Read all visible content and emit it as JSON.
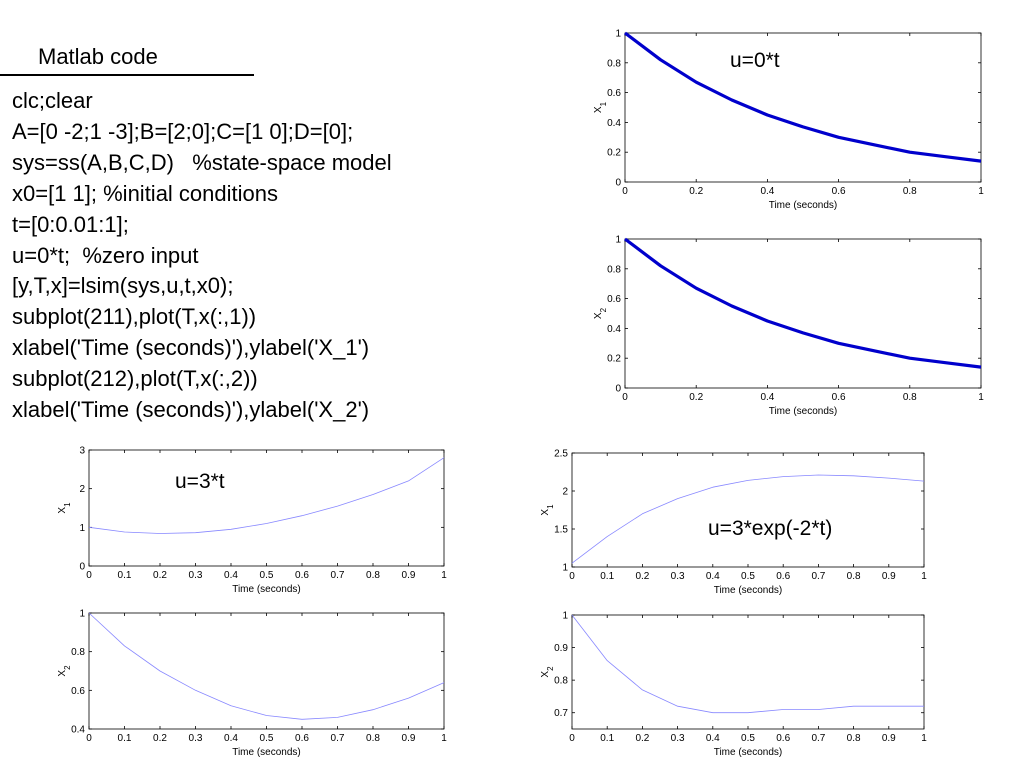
{
  "heading": "Matlab code",
  "code_lines": [
    "clc;clear",
    "A=[0 -2;1 -3];B=[2;0];C=[1 0];D=[0];",
    "sys=ss(A,B,C,D)   %state-space model",
    "x0=[1 1]; %initial conditions",
    "t=[0:0.01:1];",
    "u=0*t;  %zero input",
    "[y,T,x]=lsim(sys,u,t,x0);",
    "subplot(211),plot(T,x(:,1))",
    "xlabel('Time (seconds)'),ylabel('X_1')",
    "subplot(212),plot(T,x(:,2))",
    "xlabel('Time (seconds)'),ylabel('X_2')"
  ],
  "chart_data": [
    {
      "type": "line",
      "annotation": "u=0*t",
      "xlabel": "Time (seconds)",
      "ylabel": "X_1",
      "xlim": [
        0,
        1
      ],
      "ylim": [
        0,
        1
      ],
      "xticks": [
        0,
        0.2,
        0.4,
        0.6,
        0.8,
        1
      ],
      "yticks": [
        0,
        0.2,
        0.4,
        0.6,
        0.8,
        1
      ],
      "x": [
        0,
        0.1,
        0.2,
        0.3,
        0.4,
        0.5,
        0.6,
        0.7,
        0.8,
        0.9,
        1.0
      ],
      "series": [
        {
          "color": "#0000cc",
          "values": [
            1.0,
            0.82,
            0.67,
            0.55,
            0.45,
            0.37,
            0.3,
            0.25,
            0.2,
            0.17,
            0.14
          ]
        }
      ],
      "grid": false
    },
    {
      "type": "line",
      "xlabel": "Time (seconds)",
      "ylabel": "X_2",
      "xlim": [
        0,
        1
      ],
      "ylim": [
        0,
        1
      ],
      "xticks": [
        0,
        0.2,
        0.4,
        0.6,
        0.8,
        1
      ],
      "yticks": [
        0,
        0.2,
        0.4,
        0.6,
        0.8,
        1
      ],
      "x": [
        0,
        0.1,
        0.2,
        0.3,
        0.4,
        0.5,
        0.6,
        0.7,
        0.8,
        0.9,
        1.0
      ],
      "series": [
        {
          "color": "#0000cc",
          "values": [
            1.0,
            0.82,
            0.67,
            0.55,
            0.45,
            0.37,
            0.3,
            0.25,
            0.2,
            0.17,
            0.14
          ]
        }
      ],
      "grid": false
    },
    {
      "type": "line",
      "annotation": "u=3*t",
      "xlabel": "Time (seconds)",
      "ylabel": "X_1",
      "xlim": [
        0,
        1
      ],
      "ylim": [
        0,
        3
      ],
      "xticks": [
        0,
        0.1,
        0.2,
        0.3,
        0.4,
        0.5,
        0.6,
        0.7,
        0.8,
        0.9,
        1
      ],
      "yticks": [
        0,
        1,
        2,
        3
      ],
      "x": [
        0,
        0.1,
        0.2,
        0.3,
        0.4,
        0.5,
        0.6,
        0.7,
        0.8,
        0.9,
        1.0
      ],
      "series": [
        {
          "color": "#8888ff",
          "values": [
            1.0,
            0.88,
            0.84,
            0.86,
            0.95,
            1.1,
            1.3,
            1.55,
            1.85,
            2.2,
            2.8
          ]
        }
      ],
      "grid": false
    },
    {
      "type": "line",
      "xlabel": "Time (seconds)",
      "ylabel": "X_2",
      "xlim": [
        0,
        1
      ],
      "ylim": [
        0.4,
        1
      ],
      "xticks": [
        0,
        0.1,
        0.2,
        0.3,
        0.4,
        0.5,
        0.6,
        0.7,
        0.8,
        0.9,
        1
      ],
      "yticks": [
        0.4,
        0.6,
        0.8,
        1
      ],
      "x": [
        0,
        0.1,
        0.2,
        0.3,
        0.4,
        0.5,
        0.6,
        0.7,
        0.8,
        0.9,
        1.0
      ],
      "series": [
        {
          "color": "#8888ff",
          "values": [
            1.0,
            0.83,
            0.7,
            0.6,
            0.52,
            0.47,
            0.45,
            0.46,
            0.5,
            0.56,
            0.64
          ]
        }
      ],
      "grid": false
    },
    {
      "type": "line",
      "annotation": "u=3*exp(-2*t)",
      "xlabel": "Time (seconds)",
      "ylabel": "X_1",
      "xlim": [
        0,
        1
      ],
      "ylim": [
        1,
        2.5
      ],
      "xticks": [
        0,
        0.1,
        0.2,
        0.3,
        0.4,
        0.5,
        0.6,
        0.7,
        0.8,
        0.9,
        1
      ],
      "yticks": [
        1,
        1.5,
        2,
        2.5
      ],
      "x": [
        0,
        0.1,
        0.2,
        0.3,
        0.4,
        0.5,
        0.6,
        0.7,
        0.8,
        0.9,
        1.0
      ],
      "series": [
        {
          "color": "#8888ff",
          "values": [
            1.05,
            1.4,
            1.7,
            1.9,
            2.05,
            2.14,
            2.19,
            2.21,
            2.2,
            2.17,
            2.13
          ]
        }
      ],
      "grid": false
    },
    {
      "type": "line",
      "xlabel": "Time (seconds)",
      "ylabel": "X_2",
      "xlim": [
        0,
        1
      ],
      "ylim": [
        0.65,
        1
      ],
      "xticks": [
        0,
        0.1,
        0.2,
        0.3,
        0.4,
        0.5,
        0.6,
        0.7,
        0.8,
        0.9,
        1
      ],
      "yticks": [
        0.7,
        0.8,
        0.9,
        1
      ],
      "x": [
        0,
        0.1,
        0.2,
        0.3,
        0.4,
        0.5,
        0.6,
        0.7,
        0.8,
        0.9,
        1.0
      ],
      "series": [
        {
          "color": "#8888ff",
          "values": [
            1.0,
            0.86,
            0.77,
            0.72,
            0.7,
            0.7,
            0.71,
            0.71,
            0.72,
            0.72,
            0.72
          ]
        }
      ],
      "grid": false
    }
  ]
}
